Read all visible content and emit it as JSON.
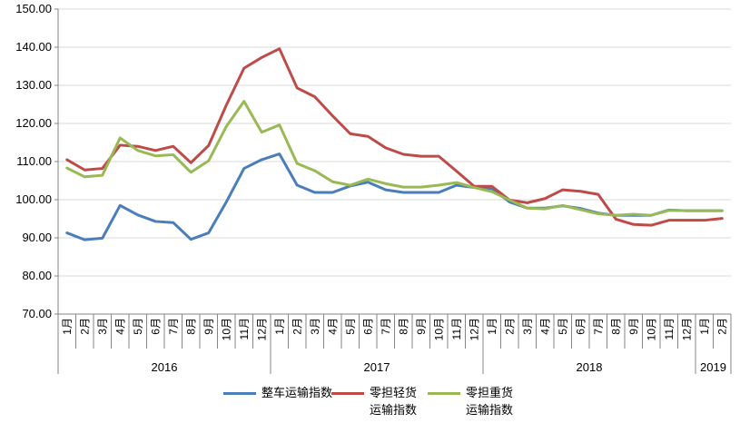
{
  "chart_data": {
    "type": "line",
    "title": "",
    "xlabel": "",
    "ylabel": "",
    "ylim": [
      70,
      150
    ],
    "yticks": [
      "70.00",
      "80.00",
      "90.00",
      "100.00",
      "110.00",
      "120.00",
      "130.00",
      "140.00",
      "150.00"
    ],
    "grid": true,
    "legend_position": "bottom",
    "years": [
      {
        "label": "2016",
        "months": 12
      },
      {
        "label": "2017",
        "months": 12
      },
      {
        "label": "2018",
        "months": 12
      },
      {
        "label": "2019",
        "months": 2
      }
    ],
    "categories": [
      "1月",
      "2月",
      "3月",
      "4月",
      "5月",
      "6月",
      "7月",
      "8月",
      "9月",
      "10月",
      "11月",
      "12月",
      "1月",
      "2月",
      "3月",
      "4月",
      "5月",
      "6月",
      "7月",
      "8月",
      "9月",
      "10月",
      "11月",
      "12月",
      "1月",
      "2月",
      "3月",
      "4月",
      "5月",
      "6月",
      "7月",
      "8月",
      "9月",
      "10月",
      "11月",
      "12月",
      "1月",
      "2月"
    ],
    "series": [
      {
        "name": "整车运输指数",
        "color": "#4a7ebb",
        "values": [
          91.3,
          89.5,
          89.9,
          98.5,
          96.0,
          94.3,
          94.0,
          89.6,
          91.3,
          99.4,
          108.2,
          110.5,
          112.0,
          103.8,
          101.9,
          101.9,
          103.6,
          104.6,
          102.6,
          101.9,
          101.9,
          101.9,
          103.8,
          103.2,
          102.9,
          99.4,
          97.8,
          97.8,
          98.4,
          97.7,
          96.5,
          95.9,
          95.9,
          95.9,
          97.3,
          97.1,
          97.1,
          97.1
        ]
      },
      {
        "name": "零担轻货\n运输指数",
        "color": "#be4b48",
        "values": [
          110.5,
          107.8,
          108.2,
          114.3,
          114.0,
          112.9,
          114.0,
          109.7,
          114.2,
          124.8,
          134.5,
          137.3,
          139.6,
          129.3,
          127.0,
          122.0,
          117.3,
          116.6,
          113.6,
          111.9,
          111.4,
          111.4,
          107.5,
          103.5,
          103.5,
          99.9,
          99.2,
          100.3,
          102.6,
          102.2,
          101.4,
          94.9,
          93.5,
          93.3,
          94.6,
          94.6,
          94.6,
          95.1
        ]
      },
      {
        "name": "零担重货\n运输指数",
        "color": "#98b954",
        "values": [
          108.3,
          106.0,
          106.4,
          116.2,
          112.9,
          111.5,
          111.8,
          107.2,
          110.2,
          119.2,
          125.8,
          117.7,
          119.6,
          109.5,
          107.6,
          104.7,
          103.8,
          105.4,
          104.2,
          103.3,
          103.3,
          103.8,
          104.5,
          103.2,
          102.1,
          99.9,
          97.8,
          97.6,
          98.5,
          97.4,
          96.3,
          95.9,
          96.2,
          95.9,
          97.2,
          97.1,
          97.1,
          97.1
        ]
      }
    ]
  }
}
